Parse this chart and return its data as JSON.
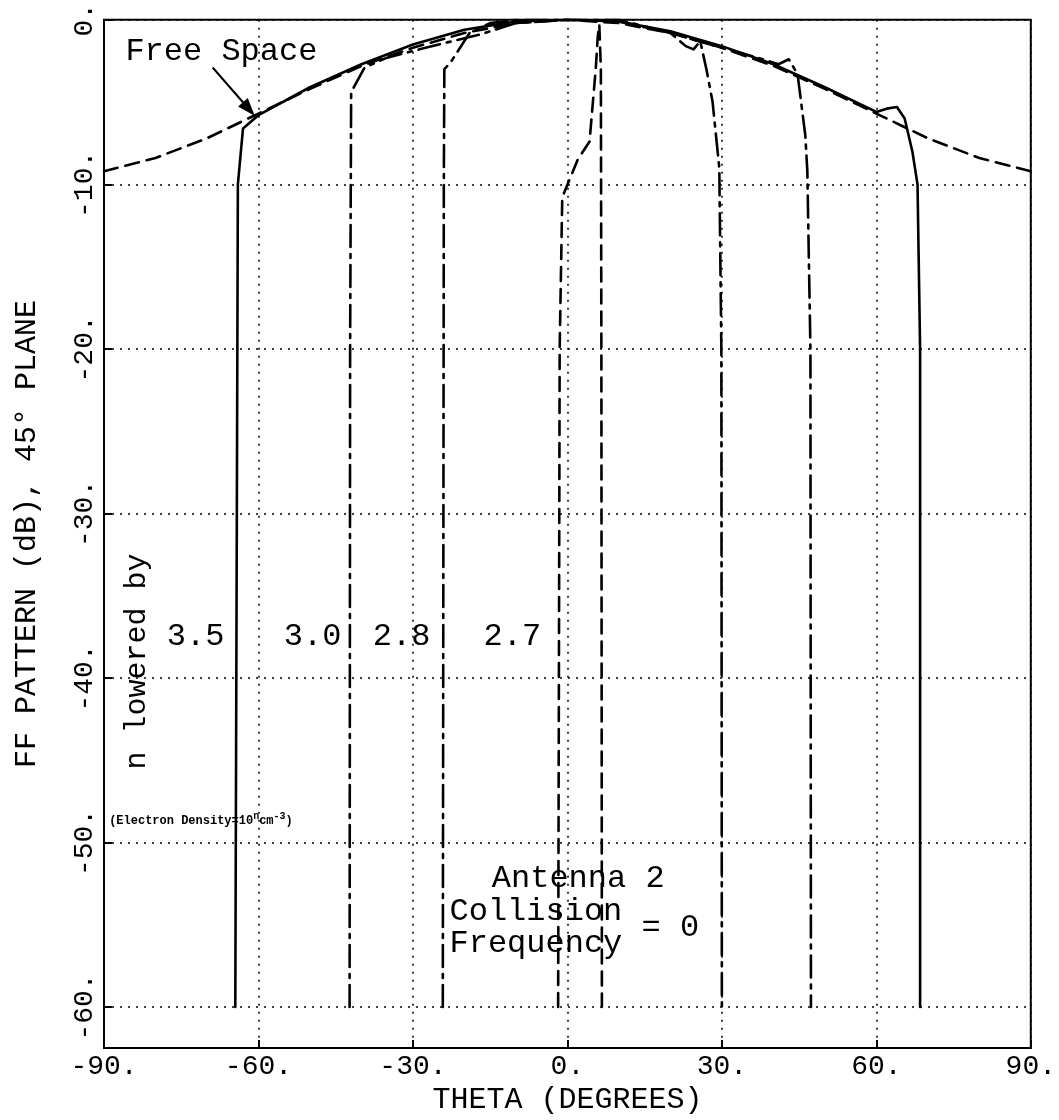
{
  "chart_data": {
    "type": "line",
    "xlabel": "THETA (DEGREES)",
    "ylabel": "FF PATTERN (dB), 45° PLANE",
    "xlim": [
      -90,
      90
    ],
    "xticks": [
      {
        "value": -90,
        "label": "-90."
      },
      {
        "value": -60,
        "label": "-60."
      },
      {
        "value": -30,
        "label": "-30."
      },
      {
        "value": 0,
        "label": "0."
      },
      {
        "value": 30,
        "label": "30."
      },
      {
        "value": 60,
        "label": "60."
      },
      {
        "value": 90,
        "label": "90."
      }
    ],
    "ylim": [
      -62.5,
      0
    ],
    "yticks": [
      {
        "value": -60,
        "label": "-60."
      },
      {
        "value": -50,
        "label": "-50."
      },
      {
        "value": -40,
        "label": "-40."
      },
      {
        "value": -30,
        "label": "-30."
      },
      {
        "value": -20,
        "label": "-20."
      },
      {
        "value": -10,
        "label": "-10."
      },
      {
        "value": 0,
        "label": "0."
      }
    ],
    "grid": true,
    "legend": false,
    "marker": "none",
    "series": [
      {
        "name": "Free Space",
        "color": "#000000",
        "line_style": "dashed",
        "x": [
          -90,
          -80,
          -70,
          -60,
          -50,
          -40,
          -30,
          -20,
          -10,
          0,
          10,
          20,
          30,
          40,
          50,
          60,
          70,
          80,
          90
        ],
        "values": [
          -9.2,
          -8.4,
          -7.2,
          -5.7,
          -4.2,
          -2.8,
          -1.7,
          -0.8,
          -0.2,
          0,
          -0.2,
          -0.8,
          -1.7,
          -2.8,
          -4.2,
          -5.7,
          -7.2,
          -8.4,
          -9.2
        ]
      },
      {
        "name": "3.5",
        "color": "#000000",
        "line_style": "solid",
        "x": [
          -64.5,
          -64.3,
          -64,
          -63,
          -60,
          -50,
          -40,
          -30,
          -20,
          -10,
          0,
          10,
          20,
          30,
          40,
          50,
          60,
          62,
          64,
          65.5,
          67,
          68,
          68.5,
          68.5
        ],
        "values": [
          -60,
          -40,
          -10,
          -6.6,
          -5.8,
          -4.1,
          -2.7,
          -1.5,
          -0.6,
          -0.1,
          0,
          -0.1,
          -0.7,
          -1.6,
          -2.7,
          -4.1,
          -5.6,
          -5.4,
          -5.3,
          -6,
          -8,
          -10,
          -20,
          -60
        ]
      },
      {
        "name": "3.0",
        "color": "#000000",
        "line_style": "dashdot",
        "x": [
          -42.3,
          -42.2,
          -42,
          -39.4,
          -35,
          -25,
          -17,
          -10,
          0,
          10,
          20,
          30,
          38,
          41,
          43,
          44.7,
          46.2,
          46.6,
          47.2,
          47.3
        ],
        "values": [
          -60,
          -20,
          -4.4,
          -2.9,
          -2.3,
          -1.5,
          -0.9,
          -0.2,
          0,
          -0.1,
          -0.8,
          -1.7,
          -2.4,
          -2.7,
          -2.4,
          -3.3,
          -7,
          -9.2,
          -20,
          -60
        ]
      },
      {
        "name": "2.8",
        "color": "#000000",
        "line_style": "dashdot",
        "x": [
          -24.2,
          -24,
          -23.9,
          -22.7,
          -19,
          -15,
          -10,
          0,
          10,
          20,
          23,
          24.5,
          25.8,
          27,
          28.2,
          29.5,
          29.9,
          30
        ],
        "values": [
          -60,
          -10,
          -3,
          -2.6,
          -0.8,
          -0.2,
          0,
          0,
          0,
          -0.8,
          -1.6,
          -1.8,
          -1.3,
          -3,
          -5,
          -9,
          -20,
          -60
        ]
      },
      {
        "name": "2.7",
        "color": "#000000",
        "line_style": "dashed",
        "x": [
          -1.8,
          -1.5,
          -1,
          2,
          4.3,
          5.5,
          5.9,
          6.2,
          6.5,
          6.6,
          6.7
        ],
        "values": [
          -60,
          -20,
          -10.8,
          -8.5,
          -7.4,
          -3,
          -1,
          -0.3,
          -3,
          -20,
          -60
        ]
      }
    ],
    "annotations": [
      "n lowered by",
      "(Electron Density=10$^{n}$cm$^{-3}$)",
      "Antenna 2",
      "Collision Frequency = 0"
    ]
  }
}
